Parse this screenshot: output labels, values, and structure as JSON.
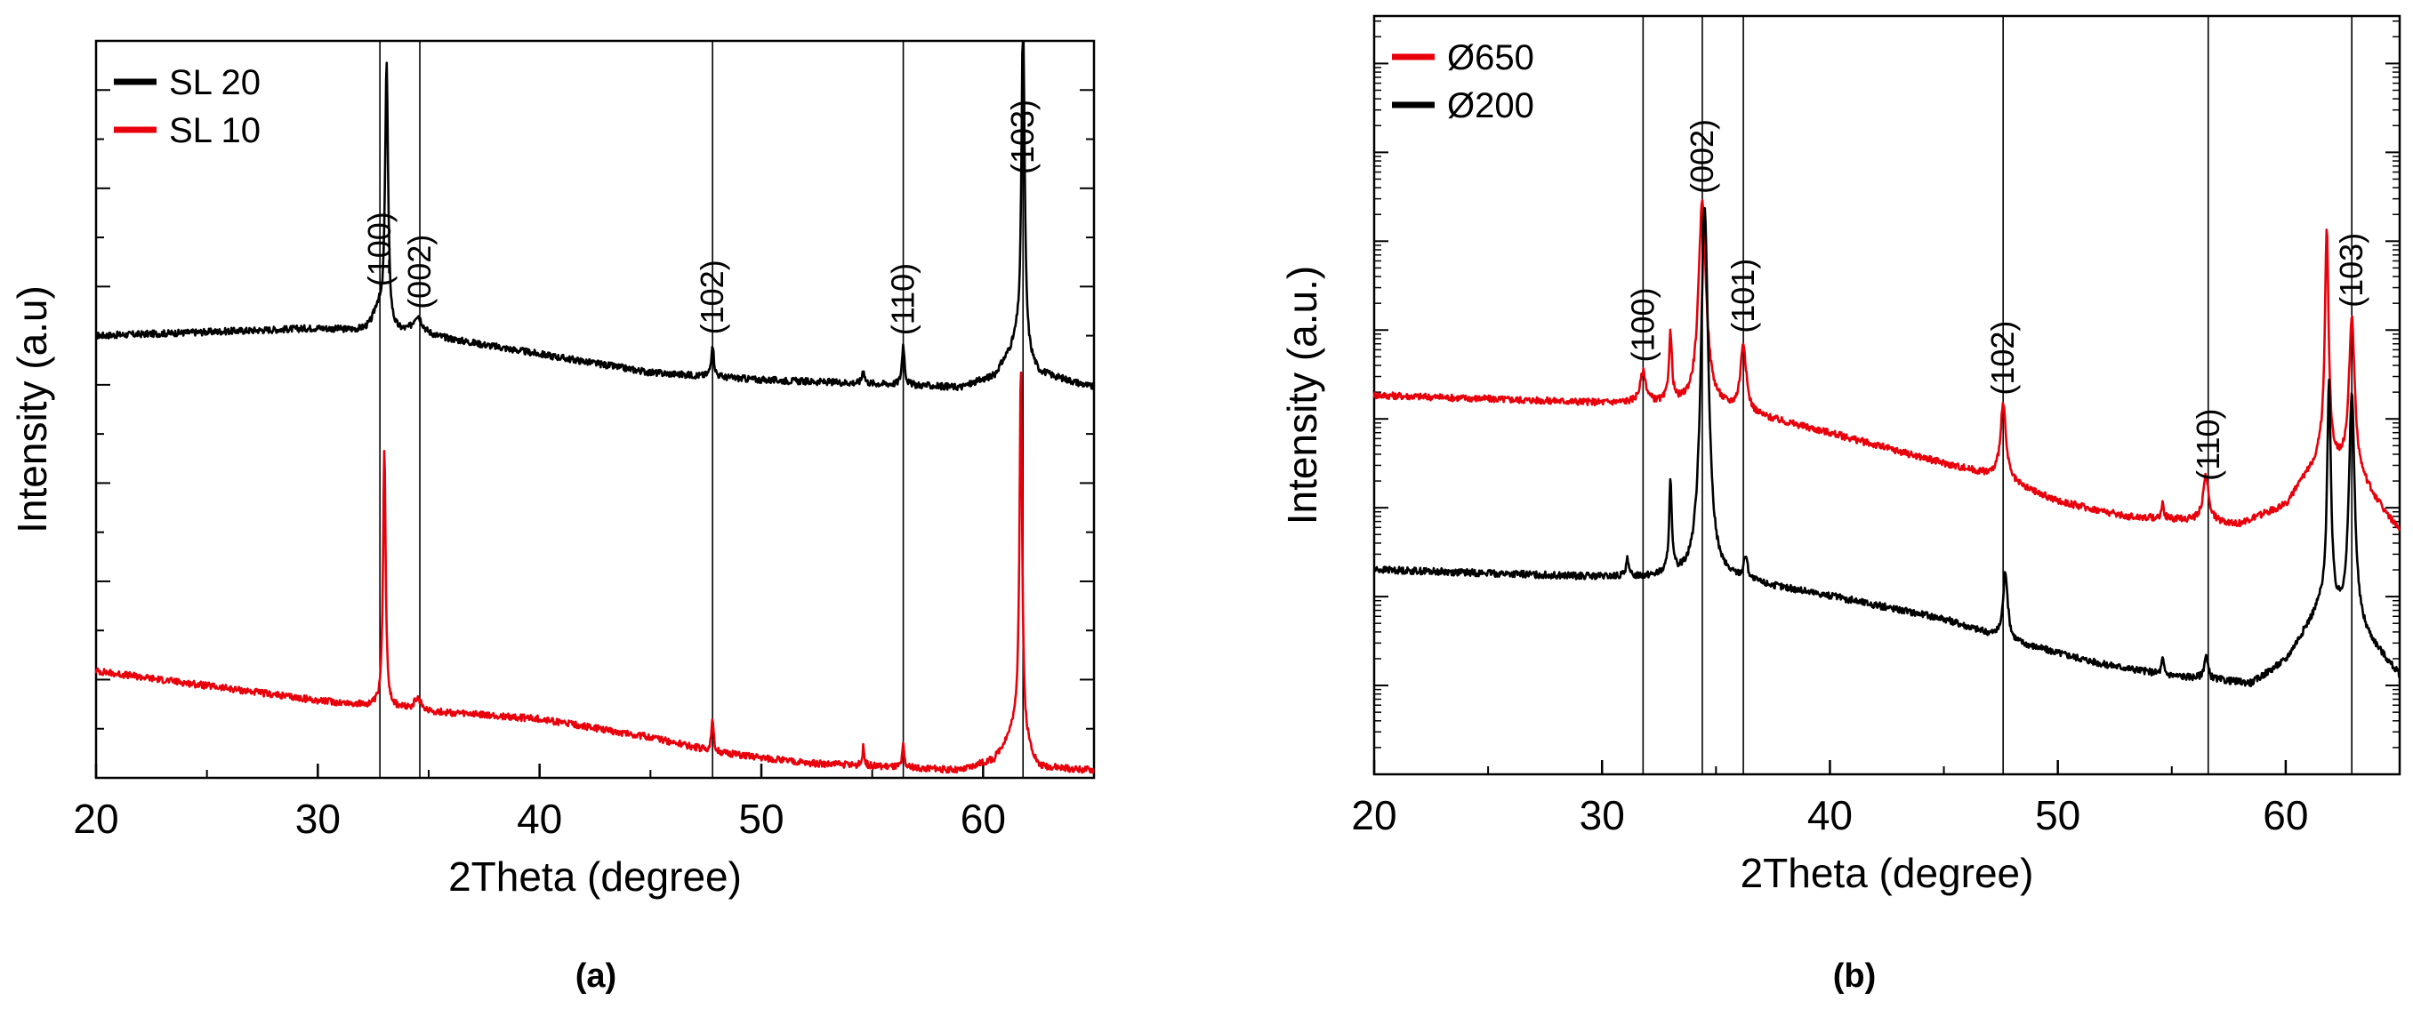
{
  "chart_data": [
    {
      "panel": "(a)",
      "type": "line",
      "xlabel": "2Theta (degree)",
      "ylabel": "Intensity (a.u)",
      "xlim": [
        20,
        65
      ],
      "xticks": [
        20,
        30,
        40,
        50,
        60
      ],
      "ylim": [
        0,
        10
      ],
      "yscale": "linear",
      "legend_position": "top-left",
      "series": [
        {
          "name": "SL 20",
          "color": "#000000",
          "baseline": [
            [
              20,
              6.0
            ],
            [
              30,
              6.1
            ],
            [
              35,
              6.0
            ],
            [
              40,
              5.75
            ],
            [
              45,
              5.5
            ],
            [
              50,
              5.4
            ],
            [
              55,
              5.35
            ],
            [
              59,
              5.3
            ],
            [
              60.5,
              5.45
            ],
            [
              61.5,
              5.9
            ],
            [
              62.5,
              5.5
            ],
            [
              65,
              5.3
            ]
          ],
          "peaks": [
            [
              32.7,
              0.3,
              0.25
            ],
            [
              33.1,
              3.6,
              0.08
            ],
            [
              34.5,
              0.25,
              0.25
            ],
            [
              47.8,
              0.45,
              0.07
            ],
            [
              54.6,
              0.2,
              0.06
            ],
            [
              56.4,
              0.55,
              0.07
            ],
            [
              61.8,
              4.8,
              0.08
            ]
          ]
        },
        {
          "name": "SL 10",
          "color": "#e8000b",
          "baseline": [
            [
              20,
              1.45
            ],
            [
              25,
              1.25
            ],
            [
              30,
              1.05
            ],
            [
              35,
              0.9
            ],
            [
              40,
              0.8
            ],
            [
              45,
              0.55
            ],
            [
              48,
              0.35
            ],
            [
              52,
              0.2
            ],
            [
              56,
              0.15
            ],
            [
              59,
              0.1
            ],
            [
              60.5,
              0.25
            ],
            [
              61.5,
              0.7
            ],
            [
              62.5,
              0.15
            ],
            [
              65,
              0.1
            ]
          ],
          "peaks": [
            [
              33.0,
              3.5,
              0.07
            ],
            [
              34.5,
              0.15,
              0.2
            ],
            [
              47.8,
              0.4,
              0.06
            ],
            [
              54.6,
              0.25,
              0.05
            ],
            [
              56.4,
              0.3,
              0.05
            ],
            [
              61.7,
              5.0,
              0.07
            ]
          ]
        }
      ],
      "reference_lines": [
        {
          "x": 32.8,
          "label": "(100)"
        },
        {
          "x": 34.6,
          "label": "(002)"
        },
        {
          "x": 47.8,
          "label": "(102)"
        },
        {
          "x": 56.4,
          "label": "(110)"
        },
        {
          "x": 61.8,
          "label": "(103)"
        }
      ]
    },
    {
      "panel": "(b)",
      "type": "line",
      "xlabel": "2Theta (degree)",
      "ylabel": "Intensity (a.u.)",
      "xlim": [
        20,
        65
      ],
      "xticks": [
        20,
        30,
        40,
        50,
        60
      ],
      "ylim": [
        0,
        10
      ],
      "yscale": "log",
      "legend_position": "top-left",
      "series": [
        {
          "name": "Ø650",
          "color": "#e8000b",
          "baseline": [
            [
              20,
              5.0
            ],
            [
              25,
              4.95
            ],
            [
              30,
              4.9
            ],
            [
              31.5,
              4.9
            ],
            [
              35,
              4.85
            ],
            [
              40,
              4.5
            ],
            [
              45,
              4.1
            ],
            [
              47,
              3.95
            ],
            [
              50,
              3.6
            ],
            [
              53,
              3.4
            ],
            [
              56,
              3.35
            ],
            [
              58,
              3.3
            ],
            [
              60,
              3.55
            ],
            [
              61.5,
              4.2
            ],
            [
              63,
              4.0
            ],
            [
              65,
              3.2
            ]
          ],
          "peaks": [
            [
              31.8,
              0.4,
              0.15
            ],
            [
              33.0,
              0.9,
              0.08
            ],
            [
              34.4,
              2.7,
              0.2
            ],
            [
              36.2,
              0.9,
              0.15
            ],
            [
              47.6,
              1.0,
              0.15
            ],
            [
              54.6,
              0.2,
              0.06
            ],
            [
              56.5,
              0.6,
              0.15
            ],
            [
              61.8,
              3.0,
              0.1
            ],
            [
              62.9,
              2.0,
              0.15
            ]
          ]
        },
        {
          "name": "Ø200",
          "color": "#000000",
          "baseline": [
            [
              20,
              2.7
            ],
            [
              25,
              2.65
            ],
            [
              30,
              2.6
            ],
            [
              33,
              2.6
            ],
            [
              36,
              2.55
            ],
            [
              40,
              2.35
            ],
            [
              45,
              2.05
            ],
            [
              48,
              1.75
            ],
            [
              52,
              1.45
            ],
            [
              55,
              1.3
            ],
            [
              58.5,
              1.2
            ],
            [
              60,
              1.5
            ],
            [
              61.5,
              2.2
            ],
            [
              63,
              2.0
            ],
            [
              65,
              1.3
            ]
          ],
          "peaks": [
            [
              31.1,
              0.25,
              0.06
            ],
            [
              33.0,
              1.2,
              0.07
            ],
            [
              34.5,
              4.9,
              0.2
            ],
            [
              36.3,
              0.3,
              0.1
            ],
            [
              47.7,
              0.9,
              0.12
            ],
            [
              54.6,
              0.2,
              0.06
            ],
            [
              56.5,
              0.3,
              0.1
            ],
            [
              61.9,
              3.0,
              0.1
            ],
            [
              62.9,
              3.0,
              0.15
            ]
          ]
        }
      ],
      "reference_lines": [
        {
          "x": 31.8,
          "label": "(100)"
        },
        {
          "x": 34.4,
          "label": "(002)"
        },
        {
          "x": 36.2,
          "label": "(101)"
        },
        {
          "x": 47.6,
          "label": "(102)"
        },
        {
          "x": 56.6,
          "label": "(110)"
        },
        {
          "x": 62.9,
          "label": "(103)"
        }
      ]
    }
  ]
}
